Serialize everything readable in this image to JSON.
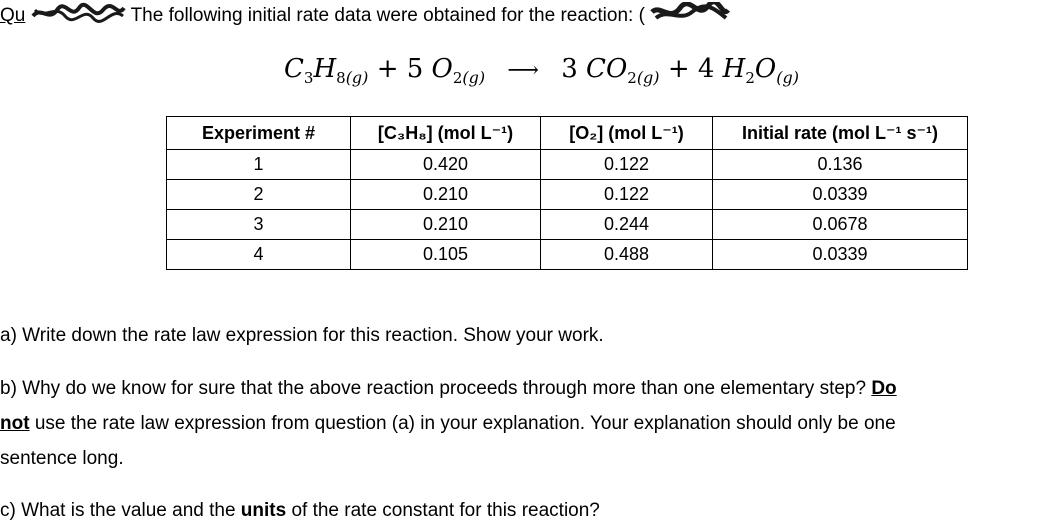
{
  "intro": {
    "label_visible": "Qu",
    "text": "The following initial rate data were obtained for the reaction: ("
  },
  "equation": {
    "reactant1": "C",
    "reactant1_sub1": "3",
    "reactant1_mid": "H",
    "reactant1_sub2": "8",
    "phase1": "(g)",
    "plus1": "+ 5",
    "reactant2": "O",
    "reactant2_sub": "2",
    "phase2": "(g)",
    "arrow": "⟶",
    "coef3": "3",
    "product1": "CO",
    "product1_sub": "2",
    "phase3": "(g)",
    "plus2": "+ 4",
    "product2": "H",
    "product2_sub": "2",
    "product2_end": "O",
    "phase4": "(g)"
  },
  "table": {
    "headers": {
      "experiment": "Experiment #",
      "c3h8": "[C₃H₈] (mol L⁻¹)",
      "o2": "[O₂] (mol L⁻¹)",
      "rate": "Initial rate (mol L⁻¹ s⁻¹)"
    },
    "rows": [
      {
        "exp": "1",
        "c3h8": "0.420",
        "o2": "0.122",
        "rate": "0.136"
      },
      {
        "exp": "2",
        "c3h8": "0.210",
        "o2": "0.122",
        "rate": "0.0339"
      },
      {
        "exp": "3",
        "c3h8": "0.210",
        "o2": "0.244",
        "rate": "0.0678"
      },
      {
        "exp": "4",
        "c3h8": "0.105",
        "o2": "0.488",
        "rate": "0.0339"
      }
    ]
  },
  "questions": {
    "a": "a) Write down the rate law expression for this reaction. Show your work.",
    "b_part1": "b) Why do we know for sure that the above reaction proceeds through more than one elementary step? ",
    "b_bold1": "Do",
    "b_bold2": "not",
    "b_part2": " use the rate law expression from question (a) in your explanation. Your explanation should only be one",
    "b_part3": "sentence long.",
    "c_part1": "c) What is the value and the ",
    "c_bold": "units",
    "c_part2": " of the rate constant for this reaction?"
  },
  "colors": {
    "scribble": "#1a1a1a",
    "text": "#000000"
  }
}
